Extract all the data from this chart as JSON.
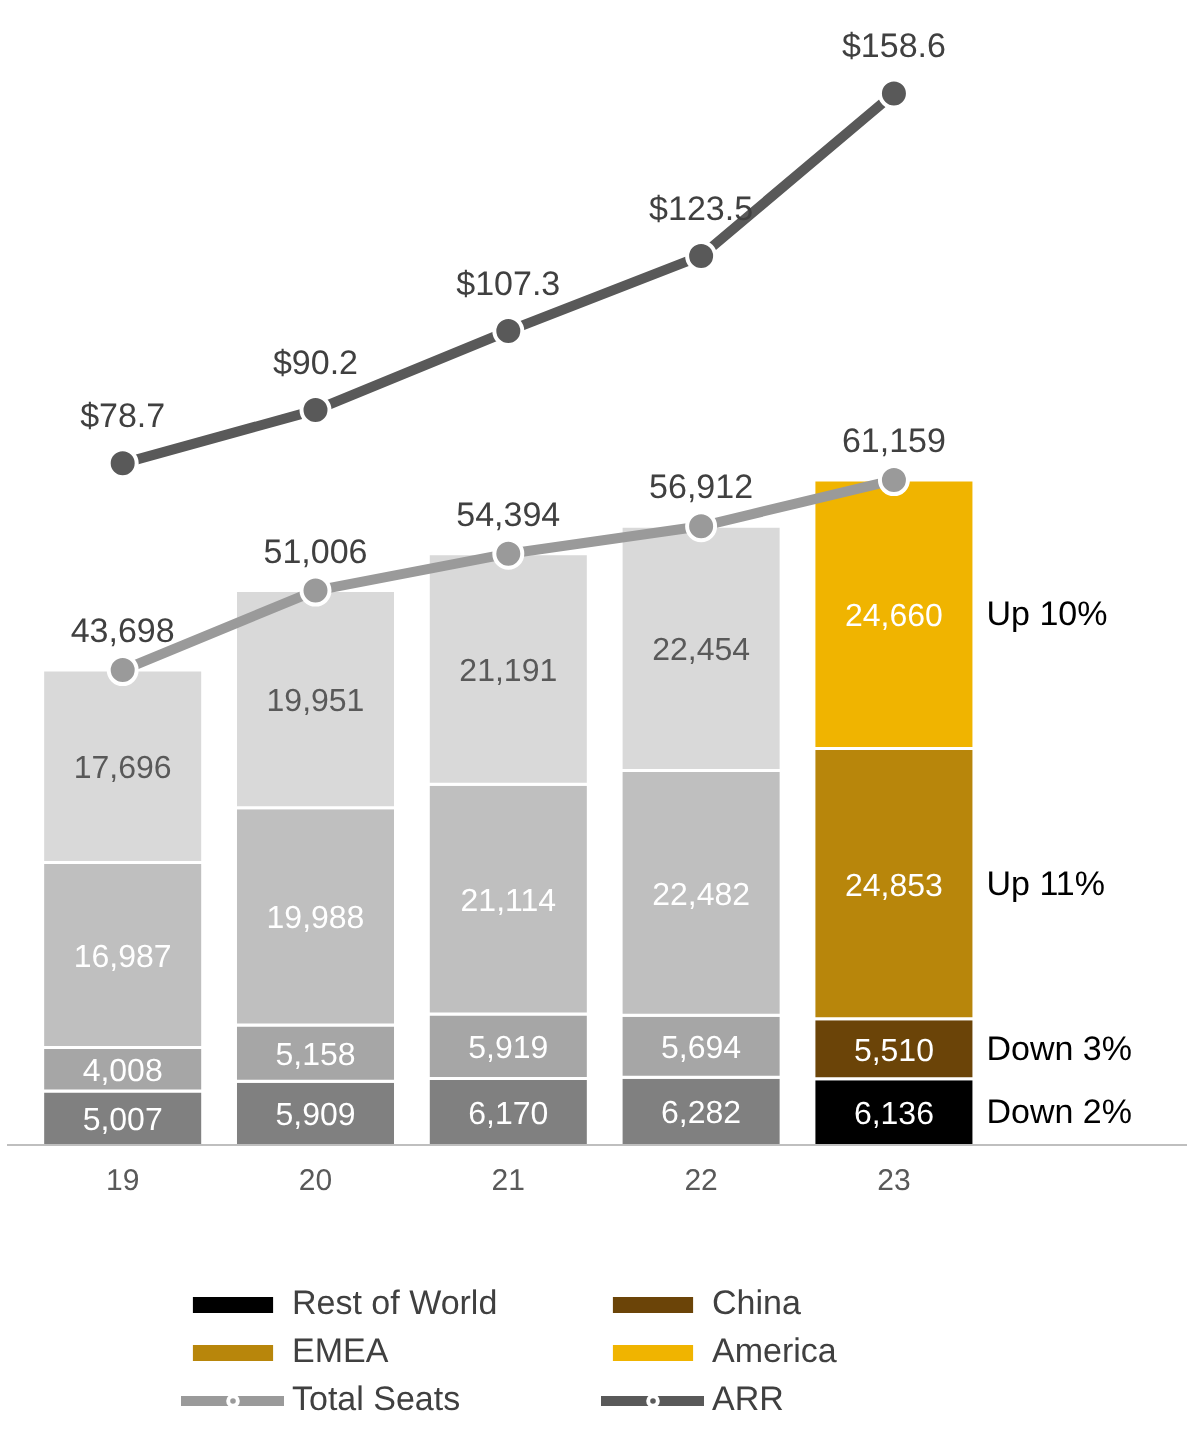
{
  "chart_data": {
    "type": "bar",
    "stacked": true,
    "categories": [
      "19",
      "20",
      "21",
      "22",
      "23"
    ],
    "series": [
      {
        "name": "Rest of World",
        "color": "#000000",
        "colors": [
          "#808080",
          "#808080",
          "#808080",
          "#808080",
          "#000000"
        ],
        "values": [
          5007,
          5909,
          6170,
          6282,
          6136
        ],
        "value_labels": [
          "5,007",
          "5,909",
          "6,170",
          "6,282",
          "6,136"
        ]
      },
      {
        "name": "China",
        "color": "#7b2c14",
        "colors": [
          "#a6a6a6",
          "#a6a6a6",
          "#a6a6a6",
          "#a6a6a6",
          "#6b4408"
        ],
        "values": [
          4008,
          5158,
          5919,
          5694,
          5510
        ],
        "value_labels": [
          "4,008",
          "5,158",
          "5,919",
          "5,694",
          "5,510"
        ]
      },
      {
        "name": "EMEA",
        "color": "#b8860b",
        "colors": [
          "#bfbfbf",
          "#bfbfbf",
          "#bfbfbf",
          "#bfbfbf",
          "#b8860b"
        ],
        "values": [
          16987,
          19988,
          21114,
          22482,
          24853
        ],
        "value_labels": [
          "16,987",
          "19,988",
          "21,114",
          "22,482",
          "24,853"
        ]
      },
      {
        "name": "America",
        "color": "#f0b400",
        "colors": [
          "#d9d9d9",
          "#d9d9d9",
          "#d9d9d9",
          "#d9d9d9",
          "#f0b400"
        ],
        "values": [
          17696,
          19951,
          21191,
          22454,
          24660
        ],
        "value_labels": [
          "17,696",
          "19,951",
          "21,191",
          "22,454",
          "24,660"
        ]
      },
      {
        "name": "Total Seats",
        "type": "line",
        "color": "#9a9a9a",
        "values": [
          43698,
          51006,
          54394,
          56912,
          61159
        ],
        "value_labels": [
          "43,698",
          "51,006",
          "54,394",
          "56,912",
          "61,159"
        ]
      },
      {
        "name": "ARR",
        "type": "line",
        "axis": "y2",
        "color": "#595959",
        "values": [
          78.7,
          90.2,
          107.3,
          123.5,
          158.6
        ],
        "value_labels": [
          "$78.7",
          "$90.2",
          "$107.3",
          "$123.5",
          "$158.6"
        ]
      }
    ],
    "tick_labels": "x",
    "grid": false,
    "legend": "bottom",
    "marker": "circle",
    "annotations": [
      "Up 10%",
      "Up 11%",
      "Down 3%",
      "Down 2%"
    ]
  }
}
